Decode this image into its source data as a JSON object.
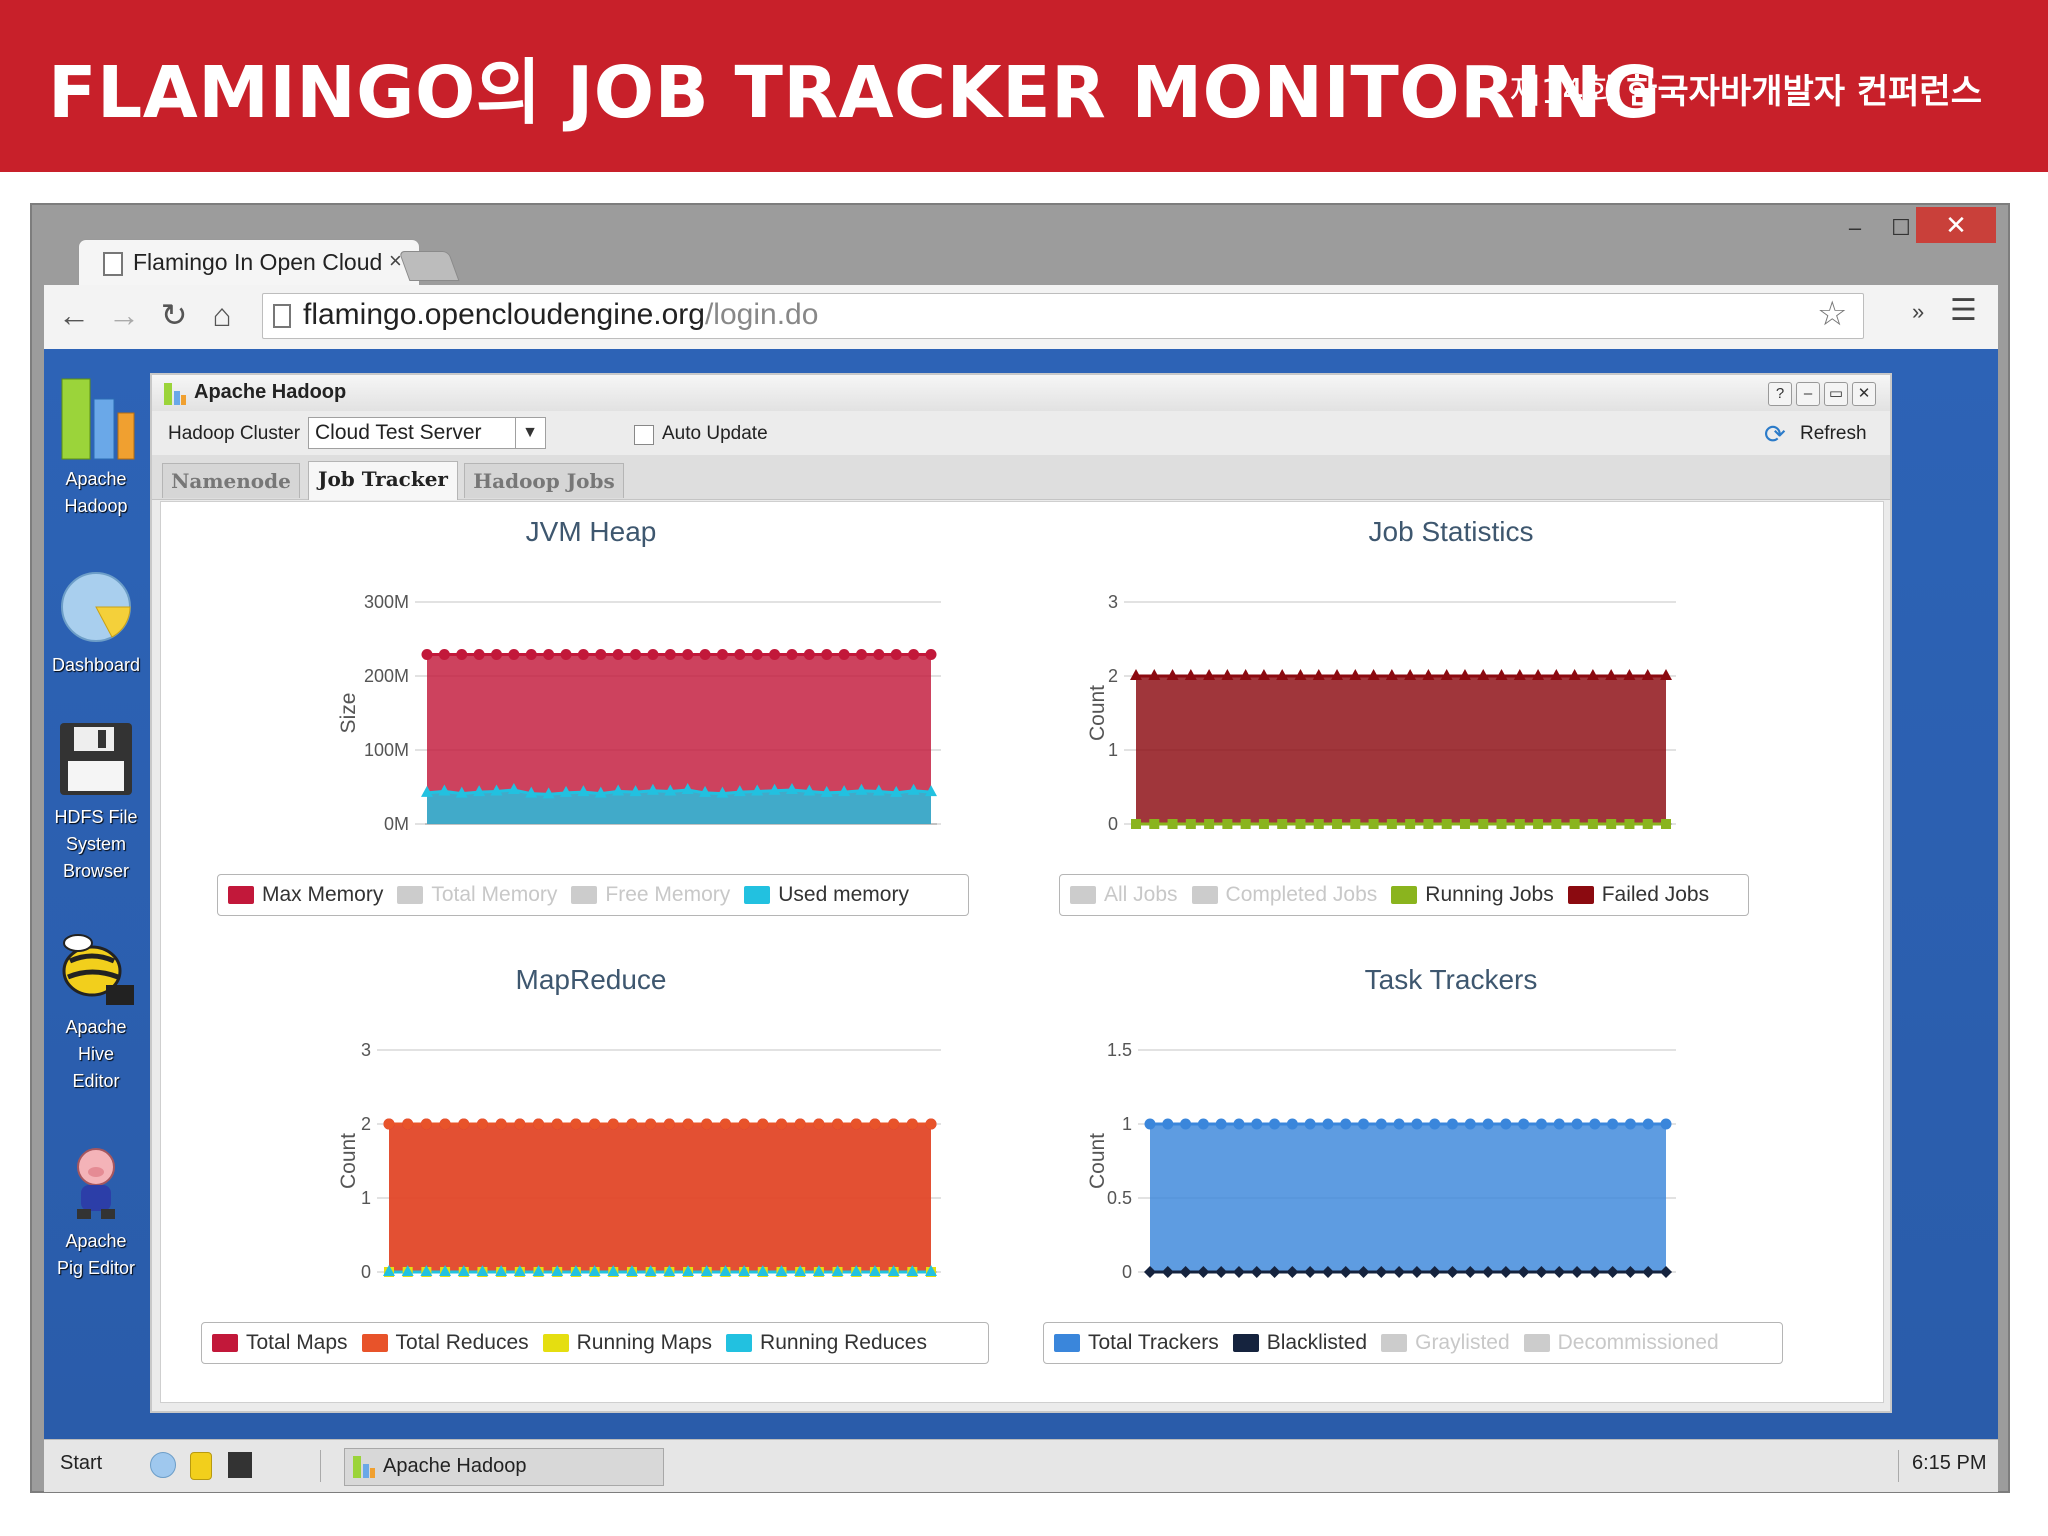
{
  "slide": {
    "title": "FLAMINGO의 JOB TRACKER MONITORING",
    "subtitle_light": "제14회",
    "subtitle_bold": "한국자바개발자 컨퍼런스"
  },
  "browser": {
    "tab_title": "Flamingo In Open Cloud",
    "tab_close": "×",
    "url_host": "flamingo.opencloudengine.org",
    "url_path": "/login.do",
    "window_close": "✕",
    "window_max": "☐",
    "window_min": "–"
  },
  "desktop_icons": [
    {
      "label": "Apache Hadoop",
      "icon": "hadoop-chart-icon"
    },
    {
      "label": "Dashboard",
      "icon": "dashboard-pie-icon"
    },
    {
      "label": "HDFS File System Browser",
      "icon": "floppy-disk-icon"
    },
    {
      "label": "Apache Hive Editor",
      "icon": "hive-bee-icon"
    },
    {
      "label": "Apache Pig Editor",
      "icon": "pig-icon"
    }
  ],
  "taskbar": {
    "start": "Start",
    "app": "Apache Hadoop",
    "clock": "6:15 PM"
  },
  "app": {
    "title": "Apache Hadoop",
    "controls": [
      "?",
      "–",
      "▭",
      "✕"
    ],
    "cluster_label": "Hadoop Cluster",
    "cluster_value": "Cloud Test Server",
    "auto_update": "Auto Update",
    "refresh": "Refresh",
    "tabs": [
      "Namenode",
      "Job Tracker",
      "Hadoop Jobs"
    ],
    "active_tab": "Job Tracker"
  },
  "chart_data": [
    {
      "type": "area",
      "title": "JVM Heap",
      "ylabel": "Size",
      "yticks": [
        "0M",
        "100M",
        "200M",
        "300M"
      ],
      "ylim": [
        0,
        300
      ],
      "y_unit": "M",
      "num_points": 30,
      "series": [
        {
          "name": "Max Memory",
          "color": "#c2183a",
          "visible": true,
          "marker": "circle",
          "values": [
            229,
            229,
            229,
            229,
            229,
            229,
            229,
            229,
            229,
            229,
            229,
            229,
            229,
            229,
            229,
            229,
            229,
            229,
            229,
            229,
            229,
            229,
            229,
            229,
            229,
            229,
            229,
            229,
            229,
            229
          ]
        },
        {
          "name": "Total Memory",
          "color": "#cccccc",
          "visible": false,
          "values": []
        },
        {
          "name": "Free Memory",
          "color": "#cccccc",
          "visible": false,
          "values": []
        },
        {
          "name": "Used memory",
          "color": "#22c1e0",
          "visible": true,
          "marker": "triangle",
          "values": [
            42,
            44,
            41,
            43,
            44,
            46,
            41,
            40,
            42,
            43,
            41,
            44,
            43,
            45,
            44,
            46,
            42,
            41,
            43,
            44,
            45,
            46,
            44,
            42,
            43,
            45,
            44,
            42,
            45,
            43
          ]
        }
      ]
    },
    {
      "type": "area",
      "title": "Job Statistics",
      "ylabel": "Count",
      "yticks": [
        "0",
        "1",
        "2",
        "3"
      ],
      "ylim": [
        0,
        3
      ],
      "num_points": 30,
      "series": [
        {
          "name": "All Jobs",
          "color": "#cccccc",
          "visible": false,
          "values": []
        },
        {
          "name": "Completed Jobs",
          "color": "#cccccc",
          "visible": false,
          "values": []
        },
        {
          "name": "Running Jobs",
          "color": "#8ab41e",
          "visible": true,
          "marker": "square",
          "values": [
            0,
            0,
            0,
            0,
            0,
            0,
            0,
            0,
            0,
            0,
            0,
            0,
            0,
            0,
            0,
            0,
            0,
            0,
            0,
            0,
            0,
            0,
            0,
            0,
            0,
            0,
            0,
            0,
            0,
            0
          ]
        },
        {
          "name": "Failed Jobs",
          "color": "#8b0a10",
          "visible": true,
          "marker": "triangle",
          "values": [
            2,
            2,
            2,
            2,
            2,
            2,
            2,
            2,
            2,
            2,
            2,
            2,
            2,
            2,
            2,
            2,
            2,
            2,
            2,
            2,
            2,
            2,
            2,
            2,
            2,
            2,
            2,
            2,
            2,
            2
          ]
        }
      ]
    },
    {
      "type": "area",
      "title": "MapReduce",
      "ylabel": "Count",
      "yticks": [
        "0",
        "1",
        "2",
        "3"
      ],
      "ylim": [
        0,
        3
      ],
      "num_points": 30,
      "series": [
        {
          "name": "Total Maps",
          "color": "#c2183a",
          "visible": true,
          "marker": "circle",
          "values": [
            2,
            2,
            2,
            2,
            2,
            2,
            2,
            2,
            2,
            2,
            2,
            2,
            2,
            2,
            2,
            2,
            2,
            2,
            2,
            2,
            2,
            2,
            2,
            2,
            2,
            2,
            2,
            2,
            2,
            2
          ]
        },
        {
          "name": "Total Reduces",
          "color": "#e8532a",
          "visible": true,
          "marker": "circle",
          "values": [
            2,
            2,
            2,
            2,
            2,
            2,
            2,
            2,
            2,
            2,
            2,
            2,
            2,
            2,
            2,
            2,
            2,
            2,
            2,
            2,
            2,
            2,
            2,
            2,
            2,
            2,
            2,
            2,
            2,
            2
          ]
        },
        {
          "name": "Running Maps",
          "color": "#e5de10",
          "visible": true,
          "marker": "square",
          "values": [
            0,
            0,
            0,
            0,
            0,
            0,
            0,
            0,
            0,
            0,
            0,
            0,
            0,
            0,
            0,
            0,
            0,
            0,
            0,
            0,
            0,
            0,
            0,
            0,
            0,
            0,
            0,
            0,
            0,
            0
          ]
        },
        {
          "name": "Running Reduces",
          "color": "#22c1e0",
          "visible": true,
          "marker": "triangle",
          "values": [
            0,
            0,
            0,
            0,
            0,
            0,
            0,
            0,
            0,
            0,
            0,
            0,
            0,
            0,
            0,
            0,
            0,
            0,
            0,
            0,
            0,
            0,
            0,
            0,
            0,
            0,
            0,
            0,
            0,
            0
          ]
        }
      ]
    },
    {
      "type": "area",
      "title": "Task Trackers",
      "ylabel": "Count",
      "yticks": [
        "0",
        "0.5",
        "1",
        "1.5"
      ],
      "ylim": [
        0,
        1.5
      ],
      "num_points": 30,
      "series": [
        {
          "name": "Total Trackers",
          "color": "#3a86db",
          "visible": true,
          "marker": "circle",
          "values": [
            1,
            1,
            1,
            1,
            1,
            1,
            1,
            1,
            1,
            1,
            1,
            1,
            1,
            1,
            1,
            1,
            1,
            1,
            1,
            1,
            1,
            1,
            1,
            1,
            1,
            1,
            1,
            1,
            1,
            1
          ]
        },
        {
          "name": "Blacklisted",
          "color": "#15233e",
          "visible": true,
          "marker": "diamond",
          "values": [
            0,
            0,
            0,
            0,
            0,
            0,
            0,
            0,
            0,
            0,
            0,
            0,
            0,
            0,
            0,
            0,
            0,
            0,
            0,
            0,
            0,
            0,
            0,
            0,
            0,
            0,
            0,
            0,
            0,
            0
          ]
        },
        {
          "name": "Graylisted",
          "color": "#cccccc",
          "visible": false,
          "values": []
        },
        {
          "name": "Decommissioned",
          "color": "#cccccc",
          "visible": false,
          "values": []
        }
      ]
    }
  ]
}
